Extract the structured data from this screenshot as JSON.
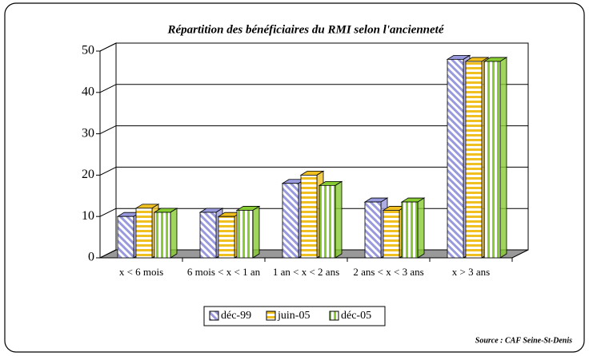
{
  "chart_data": {
    "type": "bar",
    "title": "Répartition  des bénéficiaires du RMI selon l'ancienneté",
    "categories": [
      "x < 6 mois",
      "6 mois < x < 1 an",
      "1 an < x < 2 ans",
      "2 ans < x < 3 ans",
      "x > 3 ans"
    ],
    "series": [
      {
        "name": "déc-99",
        "color": "#9999dd",
        "values": [
          10,
          11,
          18,
          13.5,
          48
        ]
      },
      {
        "name": "juin-05",
        "color": "#f0c020",
        "values": [
          12,
          10,
          20,
          11.5,
          47.5
        ]
      },
      {
        "name": "déc-05",
        "color": "#88cc33",
        "values": [
          11,
          11.5,
          17.5,
          13.5,
          47.5
        ]
      }
    ],
    "ylim": [
      0,
      50
    ],
    "yticks": [
      0,
      10,
      20,
      30,
      40,
      50
    ],
    "grid": true,
    "legend": "bottom",
    "source": "Source : CAF Seine-St-Denis"
  }
}
